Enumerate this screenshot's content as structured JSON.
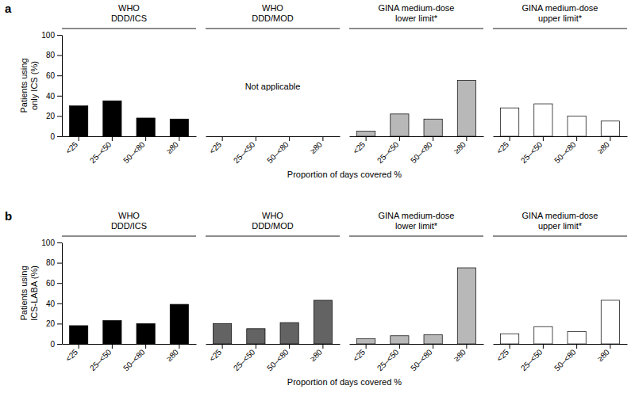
{
  "chart_data": [
    {
      "type": "bar",
      "title": "WHO\nDDD/ICS",
      "categories": [
        "<25",
        "25–<50",
        "50–<80",
        "≥80"
      ],
      "values": [
        30,
        35,
        18,
        17
      ],
      "color": "black",
      "ylim": [
        0,
        100
      ],
      "yticks": [
        0,
        20,
        40,
        60,
        80,
        100
      ],
      "y_label": "Patients using\nonly ICS (%)",
      "x_label": "Proportion of days covered %",
      "annotations": [
        "a"
      ],
      "grid": false
    },
    {
      "type": "bar",
      "title": "WHO\nDDD/MOD",
      "categories": [
        "<25",
        "25–<50",
        "50–<80",
        "≥80"
      ],
      "ylim": [
        0,
        100
      ],
      "tick_labels": "x",
      "annotations": [
        "Not applicable"
      ],
      "grid": false
    },
    {
      "type": "bar",
      "title": "GINA medium-dose\nlower limit*",
      "categories": [
        "<25",
        "25–<50",
        "50–<80",
        "≥80"
      ],
      "values": [
        5,
        22,
        17,
        55
      ],
      "color": "#b8b8b8",
      "ylim": [
        0,
        100
      ],
      "tick_labels": "x",
      "grid": false
    },
    {
      "type": "bar",
      "title": "GINA medium-dose\nupper limit*",
      "categories": [
        "<25",
        "25–<50",
        "50–<80",
        "≥80"
      ],
      "values": [
        28,
        32,
        20,
        15
      ],
      "color": "white",
      "ylim": [
        0,
        100
      ],
      "tick_labels": "x",
      "grid": false
    },
    {
      "type": "bar",
      "title": "WHO\nDDD/ICS",
      "categories": [
        "<25",
        "25–<50",
        "50–<80",
        "≥80"
      ],
      "values": [
        18,
        23,
        20,
        39
      ],
      "color": "black",
      "ylim": [
        0,
        100
      ],
      "yticks": [
        0,
        20,
        40,
        60,
        80,
        100
      ],
      "y_label": "Patients using\nICS-LABA (%)",
      "x_label": "Proportion of days covered %",
      "annotations": [
        "b"
      ],
      "grid": false
    },
    {
      "type": "bar",
      "title": "WHO\nDDD/MOD",
      "categories": [
        "<25",
        "25–<50",
        "50–<80",
        "≥80"
      ],
      "values": [
        20,
        15,
        21,
        43
      ],
      "color": "#636363",
      "ylim": [
        0,
        100
      ],
      "tick_labels": "x",
      "grid": false
    },
    {
      "type": "bar",
      "title": "GINA medium-dose\nlower limit*",
      "categories": [
        "<25",
        "25–<50",
        "50–<80",
        "≥80"
      ],
      "values": [
        5,
        8,
        9,
        75
      ],
      "color": "#b8b8b8",
      "ylim": [
        0,
        100
      ],
      "tick_labels": "x",
      "grid": false
    },
    {
      "type": "bar",
      "title": "GINA medium-dose\nupper limit*",
      "categories": [
        "<25",
        "25–<50",
        "50–<80",
        "≥80"
      ],
      "values": [
        10,
        17,
        12,
        43
      ],
      "color": "white",
      "ylim": [
        0,
        100
      ],
      "tick_labels": "x",
      "grid": false
    }
  ]
}
